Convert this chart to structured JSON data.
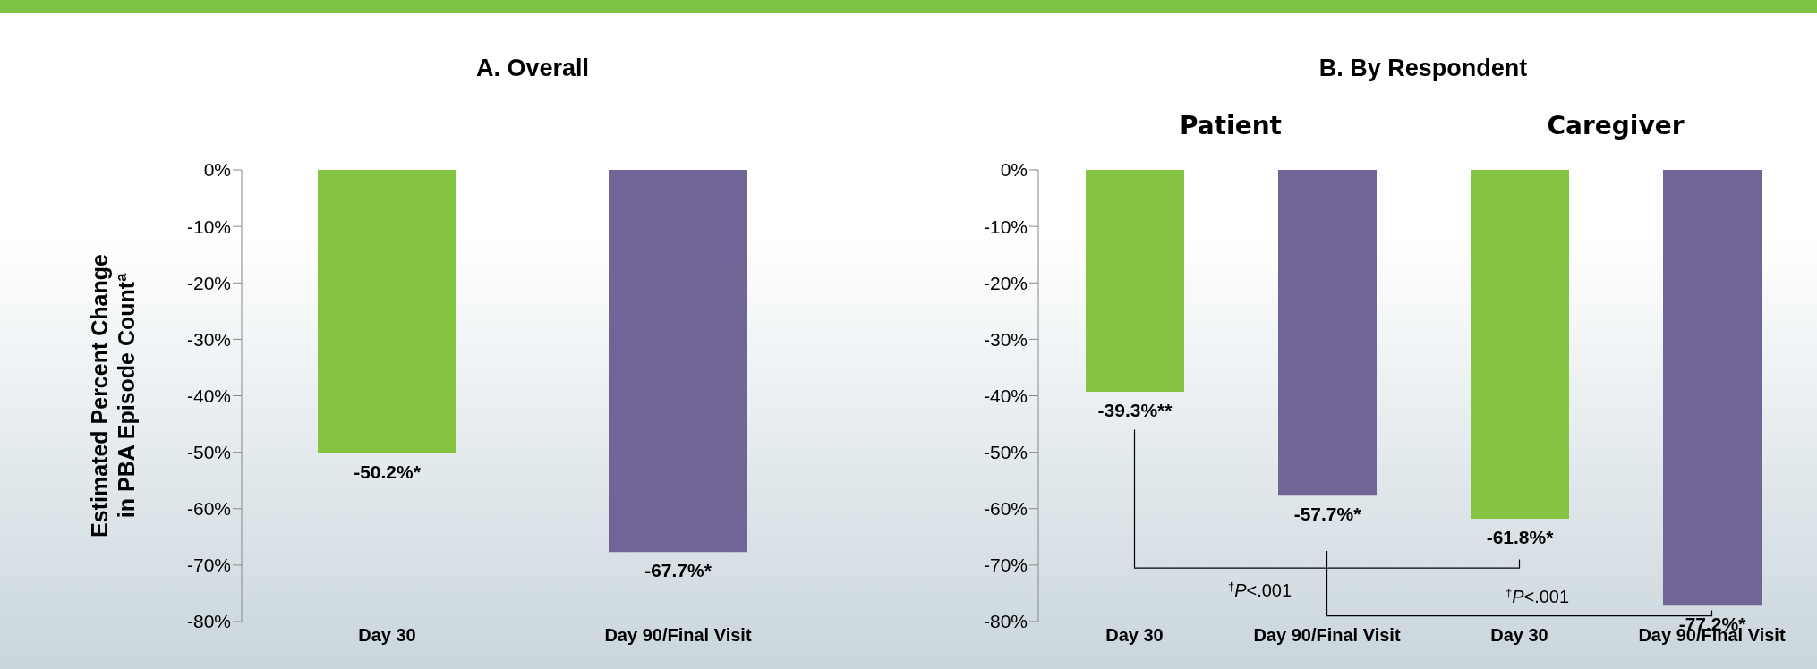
{
  "chart_data": [
    {
      "type": "bar",
      "title": "A. Overall",
      "ylabel": "Estimated Percent Change\nin PBA Episode Count$^{a}$",
      "categories": [
        "Day 30",
        "Day 90/Final Visit"
      ],
      "values": [
        -50.2,
        -67.7
      ],
      "colors": [
        "#84c441",
        "#716597"
      ],
      "value_labels": [
        "-50.2%*",
        "-67.7%*"
      ],
      "ylim": [
        -80,
        0
      ],
      "yticks": [
        {
          "value": 0,
          "label": "0%"
        },
        {
          "value": -10,
          "label": "-10%"
        },
        {
          "value": -20,
          "label": "-20%"
        },
        {
          "value": -30,
          "label": "-30%"
        },
        {
          "value": -40,
          "label": "-40%"
        },
        {
          "value": -50,
          "label": "-50%"
        },
        {
          "value": -60,
          "label": "-60%"
        },
        {
          "value": -70,
          "label": "-70%"
        },
        {
          "value": -80,
          "label": "-80%"
        }
      ]
    },
    {
      "type": "bar",
      "title": "B. By Respondent",
      "categories": [
        "Day 30",
        "Day 90/Final Visit",
        "Day 30",
        "Day 90/Final Visit"
      ],
      "values": [
        -39.3,
        -57.7,
        -61.8,
        -77.2
      ],
      "colors": [
        "#84c441",
        "#716597",
        "#84c441",
        "#716597"
      ],
      "value_labels": [
        "-39.3%**",
        "-57.7%*",
        "-61.8%*",
        "-77.2%*"
      ],
      "ylim": [
        -80,
        0
      ],
      "yticks": [
        {
          "value": 0,
          "label": "0%"
        },
        {
          "value": -10,
          "label": "-10%"
        },
        {
          "value": -20,
          "label": "-20%"
        },
        {
          "value": -30,
          "label": "-30%"
        },
        {
          "value": -40,
          "label": "-40%"
        },
        {
          "value": -50,
          "label": "-50%"
        },
        {
          "value": -60,
          "label": "-60%"
        },
        {
          "value": -70,
          "label": "-70%"
        },
        {
          "value": -80,
          "label": "-80%"
        }
      ],
      "annotations": [
        "Patient",
        "Caregiver",
        "$^{†}$P<.001",
        "$^{†}$P<.001"
      ]
    }
  ]
}
